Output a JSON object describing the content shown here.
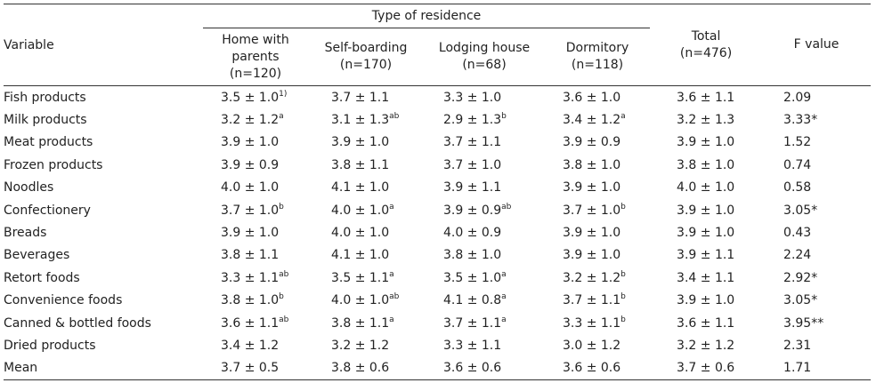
{
  "header": {
    "group_label": "Type of residence",
    "variable": "Variable",
    "home": [
      "Home with",
      "parents",
      "(n=120)"
    ],
    "self": [
      "Self-boarding",
      "(n=170)"
    ],
    "lodge": [
      "Lodging house",
      "(n=68)"
    ],
    "dorm": [
      "Dormitory",
      "(n=118)"
    ],
    "total": [
      "Total",
      "(n=476)"
    ],
    "fvalue": "F value"
  },
  "rows": [
    {
      "label": "Fish products",
      "home": "3.5 ± 1.0",
      "home_sup": "1)",
      "self": "3.7 ± 1.1",
      "self_sup": "",
      "lodge": "3.3 ± 1.0",
      "lodge_sup": "",
      "dorm": "3.6 ± 1.0",
      "dorm_sup": "",
      "total": "3.6 ± 1.1",
      "f": "2.09"
    },
    {
      "label": "Milk products",
      "home": "3.2 ± 1.2",
      "home_sup": "a",
      "self": "3.1 ± 1.3",
      "self_sup": "ab",
      "lodge": "2.9 ± 1.3",
      "lodge_sup": "b",
      "dorm": "3.4 ± 1.2",
      "dorm_sup": "a",
      "total": "3.2 ± 1.3",
      "f": "3.33*"
    },
    {
      "label": "Meat products",
      "home": "3.9 ± 1.0",
      "home_sup": "",
      "self": "3.9 ± 1.0",
      "self_sup": "",
      "lodge": "3.7 ± 1.1",
      "lodge_sup": "",
      "dorm": "3.9 ± 0.9",
      "dorm_sup": "",
      "total": "3.9 ± 1.0",
      "f": "1.52"
    },
    {
      "label": "Frozen products",
      "home": "3.9 ± 0.9",
      "home_sup": "",
      "self": "3.8 ± 1.1",
      "self_sup": "",
      "lodge": "3.7 ± 1.0",
      "lodge_sup": "",
      "dorm": "3.8 ± 1.0",
      "dorm_sup": "",
      "total": "3.8 ± 1.0",
      "f": "0.74"
    },
    {
      "label": "Noodles",
      "home": "4.0 ± 1.0",
      "home_sup": "",
      "self": "4.1 ± 1.0",
      "self_sup": "",
      "lodge": "3.9 ± 1.1",
      "lodge_sup": "",
      "dorm": "3.9 ± 1.0",
      "dorm_sup": "",
      "total": "4.0 ± 1.0",
      "f": "0.58"
    },
    {
      "label": "Confectionery",
      "home": "3.7 ± 1.0",
      "home_sup": "b",
      "self": "4.0 ± 1.0",
      "self_sup": "a",
      "lodge": "3.9 ± 0.9",
      "lodge_sup": "ab",
      "dorm": "3.7 ± 1.0",
      "dorm_sup": "b",
      "total": "3.9 ± 1.0",
      "f": "3.05*"
    },
    {
      "label": "Breads",
      "home": "3.9 ± 1.0",
      "home_sup": "",
      "self": "4.0 ± 1.0",
      "self_sup": "",
      "lodge": "4.0 ± 0.9",
      "lodge_sup": "",
      "dorm": "3.9 ± 1.0",
      "dorm_sup": "",
      "total": "3.9 ± 1.0",
      "f": "0.43"
    },
    {
      "label": "Beverages",
      "home": "3.8 ± 1.1",
      "home_sup": "",
      "self": "4.1 ± 1.0",
      "self_sup": "",
      "lodge": "3.8 ± 1.0",
      "lodge_sup": "",
      "dorm": "3.9 ± 1.0",
      "dorm_sup": "",
      "total": "3.9 ± 1.1",
      "f": "2.24"
    },
    {
      "label": "Retort foods",
      "home": "3.3 ± 1.1",
      "home_sup": "ab",
      "self": "3.5 ± 1.1",
      "self_sup": "a",
      "lodge": "3.5 ± 1.0",
      "lodge_sup": "a",
      "dorm": "3.2 ± 1.2",
      "dorm_sup": "b",
      "total": "3.4 ± 1.1",
      "f": "2.92*"
    },
    {
      "label": "Convenience foods",
      "home": "3.8 ± 1.0",
      "home_sup": "b",
      "self": "4.0 ± 1.0",
      "self_sup": "ab",
      "lodge": "4.1 ± 0.8",
      "lodge_sup": "a",
      "dorm": "3.7 ± 1.1",
      "dorm_sup": "b",
      "total": "3.9 ± 1.0",
      "f": "3.05*"
    },
    {
      "label": "Canned & bottled foods",
      "home": "3.6 ± 1.1",
      "home_sup": "ab",
      "self": "3.8 ± 1.1",
      "self_sup": "a",
      "lodge": "3.7 ± 1.1",
      "lodge_sup": "a",
      "dorm": "3.3 ± 1.1",
      "dorm_sup": "b",
      "total": "3.6 ± 1.1",
      "f": "3.95**"
    },
    {
      "label": "Dried products",
      "home": "3.4 ± 1.2",
      "home_sup": "",
      "self": "3.2 ± 1.2",
      "self_sup": "",
      "lodge": "3.3 ± 1.1",
      "lodge_sup": "",
      "dorm": "3.0 ± 1.2",
      "dorm_sup": "",
      "total": "3.2 ± 1.2",
      "f": "2.31"
    },
    {
      "label": "Mean",
      "home": "3.7 ± 0.5",
      "home_sup": "",
      "self": "3.8 ± 0.6",
      "self_sup": "",
      "lodge": "3.6 ± 0.6",
      "lodge_sup": "",
      "dorm": "3.6 ± 0.6",
      "dorm_sup": "",
      "total": "3.7 ± 0.6",
      "f": "1.71"
    }
  ]
}
